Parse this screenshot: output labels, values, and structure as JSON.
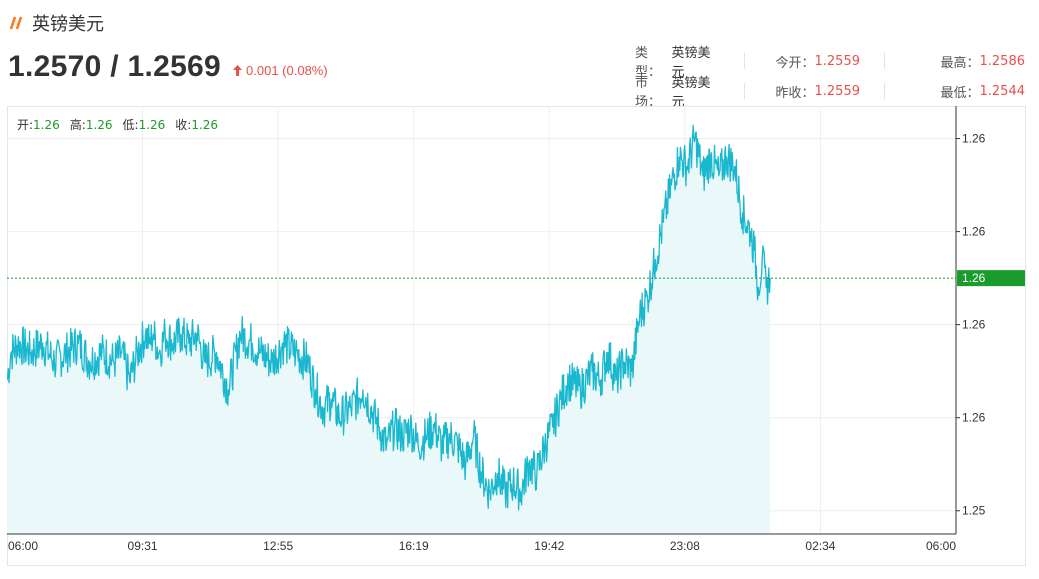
{
  "header": {
    "title": "英镑美元",
    "icon": "slash-icon",
    "icon_color": "#ff7a1a"
  },
  "quote": {
    "price": "1.2570 / 1.2569",
    "change": "0.001 (0.08%)",
    "change_color": "#e8504d"
  },
  "info": {
    "type_label": "类型：",
    "type_value": "英镑美元",
    "market_label": "市场：",
    "market_value": "英镑美元",
    "open_label": "今开：",
    "open_value": "1.2559",
    "prev_close_label": "昨收：",
    "prev_close_value": "1.2559",
    "high_label": "最高：",
    "high_value": "1.2586",
    "low_label": "最低：",
    "low_value": "1.2544"
  },
  "ohlc": {
    "open_label": "开:",
    "open_value": "1.26",
    "high_label": "高:",
    "high_value": "1.26",
    "low_label": "低:",
    "low_value": "1.26",
    "close_label": "收:",
    "close_value": "1.26"
  },
  "chart_data": {
    "type": "area",
    "title": "",
    "xlabel": "",
    "ylabel": "",
    "line_color": "#1ab8cf",
    "fill_color": "#eaf8fa",
    "current_line_color": "#1a9c2a",
    "x_ticks": [
      "06:00",
      "09:31",
      "12:55",
      "16:19",
      "19:42",
      "23:08",
      "02:34",
      "06:00"
    ],
    "y_ticks": [
      "1.26",
      "1.26",
      "1.26",
      "1.26",
      "1.25"
    ],
    "y_tick_values": [
      1.2585,
      1.2575,
      1.2565,
      1.2555,
      1.2545
    ],
    "ylim": [
      1.25425,
      1.25885
    ],
    "xlim_hours": [
      0,
      24
    ],
    "current_value": 1.257,
    "current_label": "1.26",
    "grid": true,
    "series": [
      {
        "x_hours": [
          0,
          0.1,
          0.3,
          0.6,
          0.9,
          1.2,
          1.5,
          1.8,
          2.1,
          2.4,
          2.7,
          2.9,
          3.1,
          3.3,
          3.5,
          3.6,
          3.7,
          3.85,
          4.0,
          4.2,
          4.4,
          4.6,
          4.8,
          5.0,
          5.3,
          5.6,
          5.9,
          6.2,
          6.4,
          6.7,
          7.0,
          7.3,
          7.6,
          7.8,
          8.0,
          8.2,
          8.4,
          8.7,
          9.0,
          9.2,
          9.4,
          9.6,
          9.8,
          10.0,
          10.2,
          10.4,
          10.6,
          10.8,
          11.0,
          11.2,
          11.4,
          11.6,
          11.8,
          12.0,
          12.2,
          12.4,
          12.6,
          12.8,
          13.0,
          13.2,
          13.4,
          13.6,
          13.8,
          14.0,
          14.2,
          14.5,
          14.8,
          15.0,
          15.2,
          15.4,
          15.6,
          15.8,
          16.0,
          16.2,
          16.4,
          16.6,
          16.8,
          17.0,
          17.2,
          17.4,
          17.6,
          17.8,
          18.0,
          18.2,
          18.4,
          18.6,
          18.8,
          18.9,
          19.0,
          19.1,
          19.2,
          19.3
        ],
        "values": [
          1.2559,
          1.2562,
          1.2563,
          1.2562,
          1.2563,
          1.2561,
          1.2562,
          1.2563,
          1.2561,
          1.2562,
          1.2561,
          1.2562,
          1.2559,
          1.2562,
          1.2564,
          1.2563,
          1.2564,
          1.2562,
          1.2564,
          1.2563,
          1.2564,
          1.2563,
          1.2564,
          1.2561,
          1.2562,
          1.2558,
          1.2564,
          1.2563,
          1.2562,
          1.2561,
          1.2563,
          1.2562,
          1.2561,
          1.2558,
          1.2556,
          1.2557,
          1.2555,
          1.2556,
          1.2558,
          1.2556,
          1.2554,
          1.2552,
          1.2554,
          1.2553,
          1.2554,
          1.2552,
          1.2553,
          1.2554,
          1.2552,
          1.2553,
          1.2552,
          1.255,
          1.2553,
          1.2549,
          1.2547,
          1.2549,
          1.2547,
          1.2548,
          1.2547,
          1.255,
          1.2549,
          1.2552,
          1.2554,
          1.2557,
          1.2559,
          1.2558,
          1.256,
          1.2559,
          1.2562,
          1.2559,
          1.2561,
          1.256,
          1.2566,
          1.2568,
          1.2572,
          1.2576,
          1.258,
          1.2583,
          1.2582,
          1.2585,
          1.2581,
          1.2583,
          1.2581,
          1.2583,
          1.2582,
          1.2577,
          1.2575,
          1.2573,
          1.2569,
          1.2572,
          1.2569,
          1.257
        ]
      }
    ]
  }
}
